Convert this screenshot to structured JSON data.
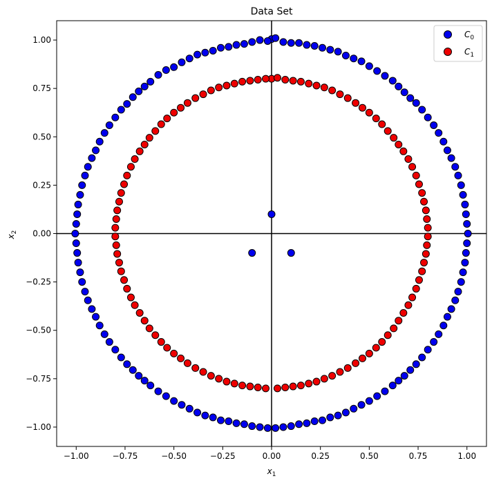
{
  "chart_data": {
    "type": "scatter",
    "title": "Data Set",
    "xlabel": "x",
    "xlabel_sub": "1",
    "ylabel": "x",
    "ylabel_sub": "2",
    "xlim": [
      -1.1,
      1.1
    ],
    "ylim": [
      -1.1,
      1.1
    ],
    "xticks": [
      -1.0,
      -0.75,
      -0.5,
      -0.25,
      0.0,
      0.25,
      0.5,
      0.75,
      1.0
    ],
    "yticks": [
      -1.0,
      -0.75,
      -0.5,
      -0.25,
      0.0,
      0.25,
      0.5,
      0.75,
      1.0
    ],
    "xtick_labels": [
      "−1.00",
      "−0.75",
      "−0.50",
      "−0.25",
      "0.00",
      "0.25",
      "0.50",
      "0.75",
      "1.00"
    ],
    "ytick_labels": [
      "−1.00",
      "−0.75",
      "−0.50",
      "−0.25",
      "0.00",
      "0.25",
      "0.50",
      "0.75",
      "1.00"
    ],
    "grid": false,
    "reference_lines": [
      "x=0",
      "y=0"
    ],
    "legend_position": "top-right",
    "series": [
      {
        "name": "C",
        "name_sub": "0",
        "color": "#0000ee",
        "edge_color": "#000000",
        "points": [
          [
            0.0,
            1.005
          ],
          [
            0.02,
            1.01
          ],
          [
            -0.02,
            0.995
          ],
          [
            0.06,
            0.99
          ],
          [
            -0.06,
            1.0
          ],
          [
            0.1,
            0.985
          ],
          [
            -0.1,
            0.99
          ],
          [
            0.14,
            0.985
          ],
          [
            -0.14,
            0.98
          ],
          [
            0.18,
            0.975
          ],
          [
            -0.18,
            0.975
          ],
          [
            0.22,
            0.97
          ],
          [
            -0.22,
            0.965
          ],
          [
            0.26,
            0.96
          ],
          [
            -0.26,
            0.96
          ],
          [
            0.3,
            0.95
          ],
          [
            -0.3,
            0.945
          ],
          [
            0.34,
            0.94
          ],
          [
            -0.34,
            0.935
          ],
          [
            0.38,
            0.92
          ],
          [
            -0.38,
            0.925
          ],
          [
            0.42,
            0.905
          ],
          [
            -0.42,
            0.905
          ],
          [
            0.46,
            0.89
          ],
          [
            -0.46,
            0.885
          ],
          [
            0.5,
            0.865
          ],
          [
            -0.5,
            0.86
          ],
          [
            0.54,
            0.84
          ],
          [
            -0.54,
            0.845
          ],
          [
            0.58,
            0.815
          ],
          [
            -0.58,
            0.82
          ],
          [
            0.62,
            0.79
          ],
          [
            -0.62,
            0.785
          ],
          [
            0.65,
            0.76
          ],
          [
            -0.65,
            0.76
          ],
          [
            0.68,
            0.73
          ],
          [
            -0.68,
            0.735
          ],
          [
            0.71,
            0.7
          ],
          [
            -0.71,
            0.705
          ],
          [
            0.74,
            0.675
          ],
          [
            -0.74,
            0.67
          ],
          [
            0.77,
            0.64
          ],
          [
            -0.77,
            0.64
          ],
          [
            0.8,
            0.6
          ],
          [
            -0.8,
            0.6
          ],
          [
            0.83,
            0.56
          ],
          [
            -0.83,
            0.56
          ],
          [
            0.855,
            0.52
          ],
          [
            -0.855,
            0.52
          ],
          [
            0.88,
            0.475
          ],
          [
            -0.88,
            0.475
          ],
          [
            0.9,
            0.43
          ],
          [
            -0.9,
            0.43
          ],
          [
            0.92,
            0.39
          ],
          [
            -0.92,
            0.39
          ],
          [
            0.94,
            0.345
          ],
          [
            -0.94,
            0.345
          ],
          [
            0.955,
            0.3
          ],
          [
            -0.955,
            0.3
          ],
          [
            0.97,
            0.25
          ],
          [
            -0.97,
            0.25
          ],
          [
            0.98,
            0.2
          ],
          [
            -0.98,
            0.2
          ],
          [
            0.99,
            0.15
          ],
          [
            -0.99,
            0.15
          ],
          [
            0.995,
            0.1
          ],
          [
            -0.995,
            0.1
          ],
          [
            1.0,
            0.05
          ],
          [
            -1.0,
            0.05
          ],
          [
            1.005,
            0.0
          ],
          [
            -1.005,
            0.0
          ],
          [
            1.0,
            -0.05
          ],
          [
            -1.0,
            -0.05
          ],
          [
            0.995,
            -0.1
          ],
          [
            -0.995,
            -0.1
          ],
          [
            0.99,
            -0.15
          ],
          [
            -0.99,
            -0.15
          ],
          [
            0.98,
            -0.2
          ],
          [
            -0.98,
            -0.2
          ],
          [
            0.97,
            -0.25
          ],
          [
            -0.97,
            -0.25
          ],
          [
            0.955,
            -0.3
          ],
          [
            -0.955,
            -0.3
          ],
          [
            0.94,
            -0.345
          ],
          [
            -0.94,
            -0.345
          ],
          [
            0.92,
            -0.39
          ],
          [
            -0.92,
            -0.39
          ],
          [
            0.9,
            -0.43
          ],
          [
            -0.9,
            -0.43
          ],
          [
            0.88,
            -0.475
          ],
          [
            -0.88,
            -0.475
          ],
          [
            0.855,
            -0.52
          ],
          [
            -0.855,
            -0.52
          ],
          [
            0.83,
            -0.56
          ],
          [
            -0.83,
            -0.56
          ],
          [
            0.8,
            -0.6
          ],
          [
            -0.8,
            -0.6
          ],
          [
            0.77,
            -0.64
          ],
          [
            -0.77,
            -0.64
          ],
          [
            0.74,
            -0.675
          ],
          [
            -0.74,
            -0.675
          ],
          [
            0.71,
            -0.705
          ],
          [
            -0.71,
            -0.705
          ],
          [
            0.68,
            -0.735
          ],
          [
            -0.68,
            -0.735
          ],
          [
            0.65,
            -0.76
          ],
          [
            -0.65,
            -0.76
          ],
          [
            0.62,
            -0.785
          ],
          [
            -0.62,
            -0.785
          ],
          [
            0.58,
            -0.815
          ],
          [
            -0.58,
            -0.815
          ],
          [
            0.54,
            -0.84
          ],
          [
            -0.54,
            -0.84
          ],
          [
            0.5,
            -0.865
          ],
          [
            -0.5,
            -0.865
          ],
          [
            0.46,
            -0.885
          ],
          [
            -0.46,
            -0.885
          ],
          [
            0.42,
            -0.905
          ],
          [
            -0.42,
            -0.905
          ],
          [
            0.38,
            -0.925
          ],
          [
            -0.38,
            -0.925
          ],
          [
            0.34,
            -0.94
          ],
          [
            -0.34,
            -0.94
          ],
          [
            0.3,
            -0.95
          ],
          [
            -0.3,
            -0.95
          ],
          [
            0.26,
            -0.965
          ],
          [
            -0.26,
            -0.965
          ],
          [
            0.22,
            -0.97
          ],
          [
            -0.22,
            -0.97
          ],
          [
            0.18,
            -0.98
          ],
          [
            -0.18,
            -0.98
          ],
          [
            0.14,
            -0.985
          ],
          [
            -0.14,
            -0.985
          ],
          [
            0.1,
            -0.995
          ],
          [
            -0.1,
            -0.995
          ],
          [
            0.06,
            -1.0
          ],
          [
            -0.06,
            -1.0
          ],
          [
            0.02,
            -1.005
          ],
          [
            -0.02,
            -1.005
          ],
          [
            0.0,
            0.1
          ],
          [
            -0.1,
            -0.1
          ],
          [
            0.1,
            -0.1
          ]
        ]
      },
      {
        "name": "C",
        "name_sub": "1",
        "color": "#ee0000",
        "edge_color": "#000000",
        "points": [
          [
            0.0,
            0.8
          ],
          [
            0.03,
            0.805
          ],
          [
            -0.03,
            0.8
          ],
          [
            0.07,
            0.795
          ],
          [
            -0.07,
            0.795
          ],
          [
            0.11,
            0.79
          ],
          [
            -0.11,
            0.79
          ],
          [
            0.15,
            0.785
          ],
          [
            -0.15,
            0.785
          ],
          [
            0.19,
            0.775
          ],
          [
            -0.19,
            0.775
          ],
          [
            0.23,
            0.765
          ],
          [
            -0.23,
            0.765
          ],
          [
            0.27,
            0.755
          ],
          [
            -0.27,
            0.755
          ],
          [
            0.31,
            0.74
          ],
          [
            -0.31,
            0.74
          ],
          [
            0.35,
            0.72
          ],
          [
            -0.35,
            0.72
          ],
          [
            0.39,
            0.7
          ],
          [
            -0.39,
            0.7
          ],
          [
            0.43,
            0.675
          ],
          [
            -0.43,
            0.675
          ],
          [
            0.465,
            0.65
          ],
          [
            -0.465,
            0.65
          ],
          [
            0.5,
            0.625
          ],
          [
            -0.5,
            0.625
          ],
          [
            0.535,
            0.595
          ],
          [
            -0.535,
            0.595
          ],
          [
            0.565,
            0.565
          ],
          [
            -0.565,
            0.565
          ],
          [
            0.595,
            0.53
          ],
          [
            -0.595,
            0.53
          ],
          [
            0.625,
            0.495
          ],
          [
            -0.625,
            0.495
          ],
          [
            0.65,
            0.46
          ],
          [
            -0.65,
            0.46
          ],
          [
            0.675,
            0.425
          ],
          [
            -0.675,
            0.425
          ],
          [
            0.7,
            0.385
          ],
          [
            -0.7,
            0.385
          ],
          [
            0.72,
            0.345
          ],
          [
            -0.72,
            0.345
          ],
          [
            0.74,
            0.3
          ],
          [
            -0.74,
            0.3
          ],
          [
            0.755,
            0.255
          ],
          [
            -0.755,
            0.255
          ],
          [
            0.77,
            0.21
          ],
          [
            -0.77,
            0.21
          ],
          [
            0.78,
            0.165
          ],
          [
            -0.78,
            0.165
          ],
          [
            0.79,
            0.12
          ],
          [
            -0.79,
            0.12
          ],
          [
            0.795,
            0.075
          ],
          [
            -0.795,
            0.075
          ],
          [
            0.8,
            0.03
          ],
          [
            -0.8,
            0.03
          ],
          [
            0.8,
            -0.015
          ],
          [
            -0.8,
            -0.015
          ],
          [
            0.795,
            -0.06
          ],
          [
            -0.795,
            -0.06
          ],
          [
            0.79,
            -0.105
          ],
          [
            -0.79,
            -0.105
          ],
          [
            0.78,
            -0.15
          ],
          [
            -0.78,
            -0.15
          ],
          [
            0.77,
            -0.195
          ],
          [
            -0.77,
            -0.195
          ],
          [
            0.755,
            -0.24
          ],
          [
            -0.755,
            -0.24
          ],
          [
            0.74,
            -0.285
          ],
          [
            -0.74,
            -0.285
          ],
          [
            0.72,
            -0.33
          ],
          [
            -0.72,
            -0.33
          ],
          [
            0.7,
            -0.37
          ],
          [
            -0.7,
            -0.37
          ],
          [
            0.675,
            -0.41
          ],
          [
            -0.675,
            -0.41
          ],
          [
            0.65,
            -0.45
          ],
          [
            -0.65,
            -0.45
          ],
          [
            0.625,
            -0.49
          ],
          [
            -0.625,
            -0.49
          ],
          [
            0.595,
            -0.525
          ],
          [
            -0.595,
            -0.525
          ],
          [
            0.565,
            -0.56
          ],
          [
            -0.565,
            -0.56
          ],
          [
            0.535,
            -0.59
          ],
          [
            -0.535,
            -0.59
          ],
          [
            0.5,
            -0.62
          ],
          [
            -0.5,
            -0.62
          ],
          [
            0.465,
            -0.645
          ],
          [
            -0.465,
            -0.645
          ],
          [
            0.43,
            -0.67
          ],
          [
            -0.43,
            -0.67
          ],
          [
            0.39,
            -0.695
          ],
          [
            -0.39,
            -0.695
          ],
          [
            0.35,
            -0.715
          ],
          [
            -0.35,
            -0.715
          ],
          [
            0.31,
            -0.735
          ],
          [
            -0.31,
            -0.735
          ],
          [
            0.27,
            -0.75
          ],
          [
            -0.27,
            -0.75
          ],
          [
            0.23,
            -0.765
          ],
          [
            -0.23,
            -0.765
          ],
          [
            0.19,
            -0.775
          ],
          [
            -0.19,
            -0.775
          ],
          [
            0.15,
            -0.785
          ],
          [
            -0.15,
            -0.785
          ],
          [
            0.11,
            -0.79
          ],
          [
            -0.11,
            -0.79
          ],
          [
            0.07,
            -0.795
          ],
          [
            -0.07,
            -0.795
          ],
          [
            0.03,
            -0.8
          ],
          [
            -0.03,
            -0.8
          ]
        ]
      }
    ]
  }
}
